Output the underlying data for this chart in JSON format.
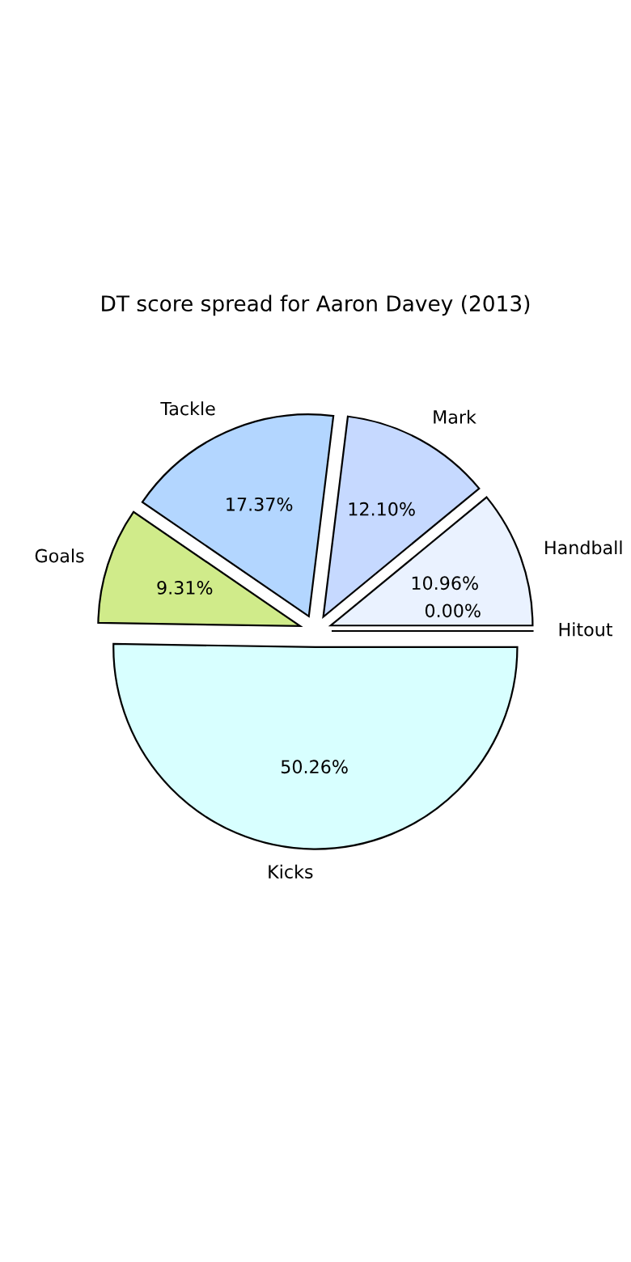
{
  "chart_data": {
    "type": "pie",
    "title": "DT score spread for Aaron Davey (2013)",
    "categories": [
      "Handball",
      "Mark",
      "Tackle",
      "Goals",
      "Kicks",
      "Hitout"
    ],
    "values": [
      10.96,
      12.1,
      17.37,
      9.31,
      50.26,
      0.0
    ],
    "value_labels": [
      "10.96%",
      "12.10%",
      "17.37%",
      "9.31%",
      "50.26%",
      "0.00%"
    ],
    "colors": [
      "#eaf2ff",
      "#c6d9ff",
      "#b3d6ff",
      "#d0eb8a",
      "#d8ffff",
      "#ffe4e1"
    ]
  }
}
